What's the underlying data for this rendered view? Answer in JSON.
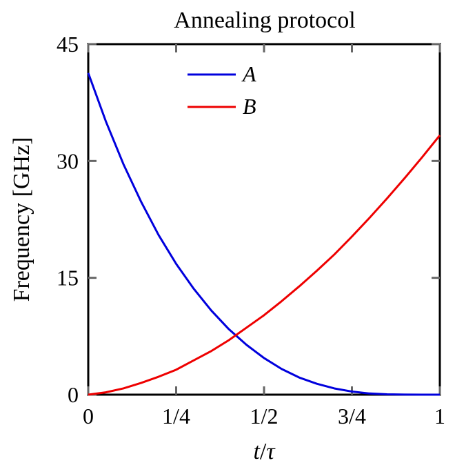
{
  "chart_data": {
    "type": "line",
    "title": "Annealing protocol",
    "ylabel": "Frequency [GHz]",
    "xlabel_var": "t",
    "xlabel_sep": "/",
    "xlabel_param": "τ",
    "xlim": [
      0,
      1
    ],
    "ylim": [
      0,
      45
    ],
    "xticks": [
      0,
      0.25,
      0.5,
      0.75,
      1
    ],
    "xtick_labels": [
      "0",
      "1/4",
      "1/2",
      "3/4",
      "1"
    ],
    "yticks": [
      0,
      15,
      30,
      45
    ],
    "ytick_labels": [
      "0",
      "15",
      "30",
      "45"
    ],
    "legend_position": "top-left",
    "grid": false,
    "series": [
      {
        "name": "A",
        "color": "#0000dd",
        "x": [
          0,
          0.05,
          0.1,
          0.15,
          0.2,
          0.25,
          0.3,
          0.35,
          0.4,
          0.45,
          0.5,
          0.55,
          0.6,
          0.65,
          0.7,
          0.75,
          0.8,
          0.85,
          0.9,
          0.95,
          1
        ],
        "values": [
          41.3,
          35.1,
          29.6,
          24.8,
          20.5,
          16.8,
          13.6,
          10.8,
          8.4,
          6.4,
          4.7,
          3.3,
          2.2,
          1.4,
          0.8,
          0.4,
          0.15,
          0.05,
          0.01,
          0.0,
          0.0
        ]
      },
      {
        "name": "B",
        "color": "#ee0000",
        "x": [
          0,
          0.05,
          0.1,
          0.15,
          0.2,
          0.25,
          0.3,
          0.35,
          0.4,
          0.45,
          0.5,
          0.55,
          0.6,
          0.65,
          0.7,
          0.75,
          0.8,
          0.85,
          0.9,
          0.95,
          1
        ],
        "values": [
          0.0,
          0.3,
          0.8,
          1.5,
          2.3,
          3.2,
          4.4,
          5.6,
          7.0,
          8.6,
          10.2,
          12.0,
          13.9,
          15.9,
          18.0,
          20.3,
          22.7,
          25.2,
          27.8,
          30.5,
          33.3
        ]
      }
    ]
  }
}
